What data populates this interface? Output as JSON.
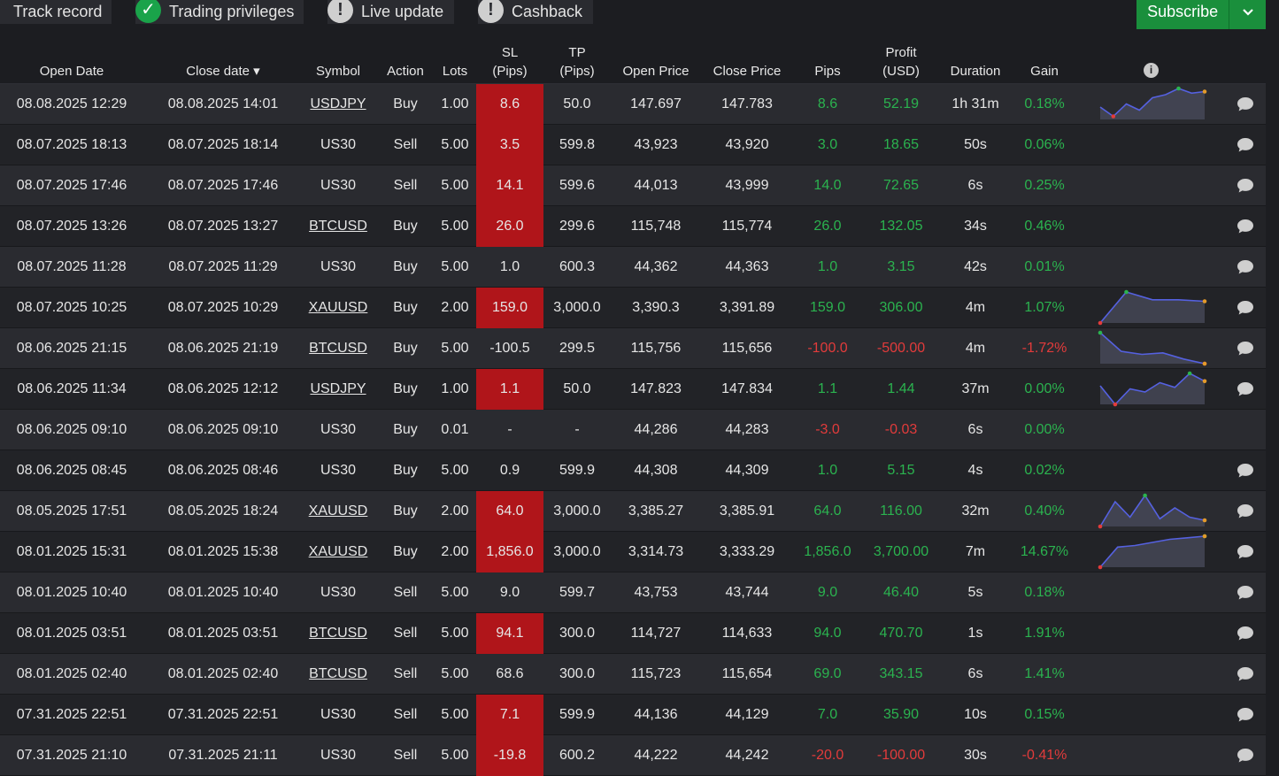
{
  "topbar": {
    "pills": [
      {
        "label": "Track record",
        "icon": "none"
      },
      {
        "label": "Trading privileges",
        "icon": "check-icon"
      },
      {
        "label": "Live update",
        "icon": "exclamation-icon"
      },
      {
        "label": "Cashback",
        "icon": "exclamation-icon"
      }
    ],
    "subscribe": {
      "label": "Subscribe"
    }
  },
  "columns": [
    {
      "key": "open_date",
      "label": "Open Date"
    },
    {
      "key": "close_date",
      "label": "Close date ▾"
    },
    {
      "key": "symbol",
      "label": "Symbol"
    },
    {
      "key": "action",
      "label": "Action"
    },
    {
      "key": "lots",
      "label": "Lots"
    },
    {
      "key": "sl",
      "label": "SL\n(Pips)"
    },
    {
      "key": "tp",
      "label": "TP\n(Pips)"
    },
    {
      "key": "open_price",
      "label": "Open Price"
    },
    {
      "key": "close_price",
      "label": "Close Price"
    },
    {
      "key": "pips",
      "label": "Pips"
    },
    {
      "key": "profit",
      "label": "Profit\n(USD)"
    },
    {
      "key": "duration",
      "label": "Duration"
    },
    {
      "key": "gain",
      "label": "Gain"
    }
  ],
  "colors": {
    "positive": "#2bb34f",
    "negative": "#e23b3b",
    "sl_hit": "#b0151a",
    "subscribe": "#1a8f3c"
  },
  "trades": [
    {
      "open_date": "08.08.2025 12:29",
      "close_date": "08.08.2025 14:01",
      "symbol": "USDJPY",
      "link": true,
      "action": "Buy",
      "lots": "1.00",
      "sl": "8.6",
      "sl_hit": true,
      "tp": "50.0",
      "open_price": "147.697",
      "close_price": "147.783",
      "pips": "8.6",
      "profit": "52.19",
      "duration": "1h 31m",
      "gain": "0.18%",
      "sign": "pos",
      "spark": [
        0.4,
        0.1,
        0.5,
        0.3,
        0.7,
        0.8,
        1.0,
        0.85,
        0.9
      ],
      "comment": true
    },
    {
      "open_date": "08.07.2025 18:13",
      "close_date": "08.07.2025 18:14",
      "symbol": "US30",
      "link": false,
      "action": "Sell",
      "lots": "5.00",
      "sl": "3.5",
      "sl_hit": true,
      "tp": "599.8",
      "open_price": "43,923",
      "close_price": "43,920",
      "pips": "3.0",
      "profit": "18.65",
      "duration": "50s",
      "gain": "0.06%",
      "sign": "pos",
      "spark": null,
      "comment": true
    },
    {
      "open_date": "08.07.2025 17:46",
      "close_date": "08.07.2025 17:46",
      "symbol": "US30",
      "link": false,
      "action": "Sell",
      "lots": "5.00",
      "sl": "14.1",
      "sl_hit": true,
      "tp": "599.6",
      "open_price": "44,013",
      "close_price": "43,999",
      "pips": "14.0",
      "profit": "72.65",
      "duration": "6s",
      "gain": "0.25%",
      "sign": "pos",
      "spark": null,
      "comment": true
    },
    {
      "open_date": "08.07.2025 13:26",
      "close_date": "08.07.2025 13:27",
      "symbol": "BTCUSD",
      "link": true,
      "action": "Buy",
      "lots": "5.00",
      "sl": "26.0",
      "sl_hit": true,
      "tp": "299.6",
      "open_price": "115,748",
      "close_price": "115,774",
      "pips": "26.0",
      "profit": "132.05",
      "duration": "34s",
      "gain": "0.46%",
      "sign": "pos",
      "spark": null,
      "comment": true
    },
    {
      "open_date": "08.07.2025 11:28",
      "close_date": "08.07.2025 11:29",
      "symbol": "US30",
      "link": false,
      "action": "Buy",
      "lots": "5.00",
      "sl": "1.0",
      "sl_hit": false,
      "tp": "600.3",
      "open_price": "44,362",
      "close_price": "44,363",
      "pips": "1.0",
      "profit": "3.15",
      "duration": "42s",
      "gain": "0.01%",
      "sign": "pos",
      "spark": null,
      "comment": true
    },
    {
      "open_date": "08.07.2025 10:25",
      "close_date": "08.07.2025 10:29",
      "symbol": "XAUUSD",
      "link": true,
      "action": "Buy",
      "lots": "2.00",
      "sl": "159.0",
      "sl_hit": true,
      "tp": "3,000.0",
      "open_price": "3,390.3",
      "close_price": "3,391.89",
      "pips": "159.0",
      "profit": "306.00",
      "duration": "4m",
      "gain": "1.07%",
      "sign": "pos",
      "spark": [
        0.0,
        1.0,
        0.75,
        0.75,
        0.7
      ],
      "comment": true
    },
    {
      "open_date": "08.06.2025 21:15",
      "close_date": "08.06.2025 21:19",
      "symbol": "BTCUSD",
      "link": true,
      "action": "Buy",
      "lots": "5.00",
      "sl": "-100.5",
      "sl_hit": false,
      "tp": "299.5",
      "open_price": "115,756",
      "close_price": "115,656",
      "pips": "-100.0",
      "profit": "-500.00",
      "duration": "4m",
      "gain": "-1.72%",
      "sign": "neg",
      "spark": [
        1.0,
        0.4,
        0.3,
        0.35,
        0.15,
        0.0
      ],
      "comment": true
    },
    {
      "open_date": "08.06.2025 11:34",
      "close_date": "08.06.2025 12:12",
      "symbol": "USDJPY",
      "link": true,
      "action": "Buy",
      "lots": "1.00",
      "sl": "1.1",
      "sl_hit": true,
      "tp": "50.0",
      "open_price": "147.823",
      "close_price": "147.834",
      "pips": "1.1",
      "profit": "1.44",
      "duration": "37m",
      "gain": "0.00%",
      "sign": "pos",
      "spark": [
        0.6,
        0.0,
        0.5,
        0.4,
        0.7,
        0.55,
        1.0,
        0.75
      ],
      "comment": true
    },
    {
      "open_date": "08.06.2025 09:10",
      "close_date": "08.06.2025 09:10",
      "symbol": "US30",
      "link": false,
      "action": "Buy",
      "lots": "0.01",
      "sl": "-",
      "sl_hit": false,
      "tp": "-",
      "open_price": "44,286",
      "close_price": "44,283",
      "pips": "-3.0",
      "profit": "-0.03",
      "duration": "6s",
      "gain": "0.00%",
      "sign": "neg",
      "gain_sign": "pos",
      "spark": null,
      "comment": false
    },
    {
      "open_date": "08.06.2025 08:45",
      "close_date": "08.06.2025 08:46",
      "symbol": "US30",
      "link": false,
      "action": "Buy",
      "lots": "5.00",
      "sl": "0.9",
      "sl_hit": false,
      "tp": "599.9",
      "open_price": "44,308",
      "close_price": "44,309",
      "pips": "1.0",
      "profit": "5.15",
      "duration": "4s",
      "gain": "0.02%",
      "sign": "pos",
      "spark": null,
      "comment": true
    },
    {
      "open_date": "08.05.2025 17:51",
      "close_date": "08.05.2025 18:24",
      "symbol": "XAUUSD",
      "link": true,
      "action": "Buy",
      "lots": "2.00",
      "sl": "64.0",
      "sl_hit": true,
      "tp": "3,000.0",
      "open_price": "3,385.27",
      "close_price": "3,385.91",
      "pips": "64.0",
      "profit": "116.00",
      "duration": "32m",
      "gain": "0.40%",
      "sign": "pos",
      "spark": [
        0.0,
        0.8,
        0.3,
        1.0,
        0.25,
        0.6,
        0.3,
        0.2
      ],
      "comment": true
    },
    {
      "open_date": "08.01.2025 15:31",
      "close_date": "08.01.2025 15:38",
      "symbol": "XAUUSD",
      "link": true,
      "action": "Buy",
      "lots": "2.00",
      "sl": "1,856.0",
      "sl_hit": true,
      "tp": "3,000.0",
      "open_price": "3,314.73",
      "close_price": "3,333.29",
      "pips": "1,856.0",
      "profit": "3,700.00",
      "duration": "7m",
      "gain": "14.67%",
      "sign": "pos",
      "spark": [
        0.0,
        0.65,
        0.7,
        0.8,
        0.9,
        0.95,
        1.0
      ],
      "comment": true
    },
    {
      "open_date": "08.01.2025 10:40",
      "close_date": "08.01.2025 10:40",
      "symbol": "US30",
      "link": false,
      "action": "Sell",
      "lots": "5.00",
      "sl": "9.0",
      "sl_hit": false,
      "tp": "599.7",
      "open_price": "43,753",
      "close_price": "43,744",
      "pips": "9.0",
      "profit": "46.40",
      "duration": "5s",
      "gain": "0.18%",
      "sign": "pos",
      "spark": null,
      "comment": true
    },
    {
      "open_date": "08.01.2025 03:51",
      "close_date": "08.01.2025 03:51",
      "symbol": "BTCUSD",
      "link": true,
      "action": "Sell",
      "lots": "5.00",
      "sl": "94.1",
      "sl_hit": true,
      "tp": "300.0",
      "open_price": "114,727",
      "close_price": "114,633",
      "pips": "94.0",
      "profit": "470.70",
      "duration": "1s",
      "gain": "1.91%",
      "sign": "pos",
      "spark": null,
      "comment": true
    },
    {
      "open_date": "08.01.2025 02:40",
      "close_date": "08.01.2025 02:40",
      "symbol": "BTCUSD",
      "link": true,
      "action": "Sell",
      "lots": "5.00",
      "sl": "68.6",
      "sl_hit": false,
      "tp": "300.0",
      "open_price": "115,723",
      "close_price": "115,654",
      "pips": "69.0",
      "profit": "343.15",
      "duration": "6s",
      "gain": "1.41%",
      "sign": "pos",
      "spark": null,
      "comment": true
    },
    {
      "open_date": "07.31.2025 22:51",
      "close_date": "07.31.2025 22:51",
      "symbol": "US30",
      "link": false,
      "action": "Sell",
      "lots": "5.00",
      "sl": "7.1",
      "sl_hit": true,
      "tp": "599.9",
      "open_price": "44,136",
      "close_price": "44,129",
      "pips": "7.0",
      "profit": "35.90",
      "duration": "10s",
      "gain": "0.15%",
      "sign": "pos",
      "spark": null,
      "comment": true
    },
    {
      "open_date": "07.31.2025 21:10",
      "close_date": "07.31.2025 21:11",
      "symbol": "US30",
      "link": false,
      "action": "Sell",
      "lots": "5.00",
      "sl": "-19.8",
      "sl_hit": true,
      "tp": "600.2",
      "open_price": "44,222",
      "close_price": "44,242",
      "pips": "-20.0",
      "profit": "-100.00",
      "duration": "30s",
      "gain": "-0.41%",
      "sign": "neg",
      "spark": null,
      "comment": true
    }
  ]
}
